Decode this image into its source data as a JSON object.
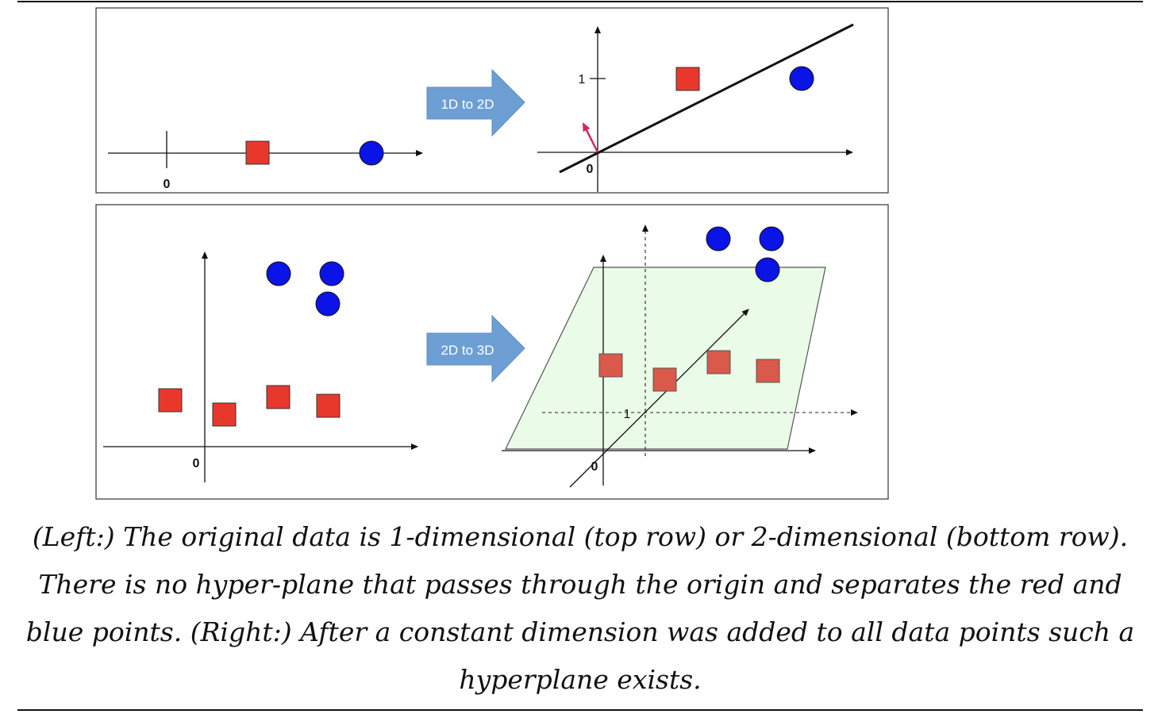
{
  "top_panel": {
    "left_axis_origin_label": "0",
    "arrow_label": "1D to 2D",
    "right_axis_origin_label": "0",
    "right_y_tick_label": "1"
  },
  "bottom_panel": {
    "left_axis_origin_label": "0",
    "arrow_label": "2D to 3D",
    "right_axis_origin_label": "0",
    "right_tick_label": "1"
  },
  "caption": "(Left:) The original data is 1-dimensional (top row) or 2-dimensional (bottom row). There is no hyper-plane that passes through the origin and separates the red and blue points. (Right:) After a constant dimension was added to all data points such a hyperplane exists.",
  "colors": {
    "red_point": "#e8382c",
    "blue_point": "#0a14e6",
    "plane_fill": "#eafbe8",
    "plane_square": "#d9594a",
    "arrow_fill": "#6e9fd4",
    "normal_vector": "#d32757"
  }
}
